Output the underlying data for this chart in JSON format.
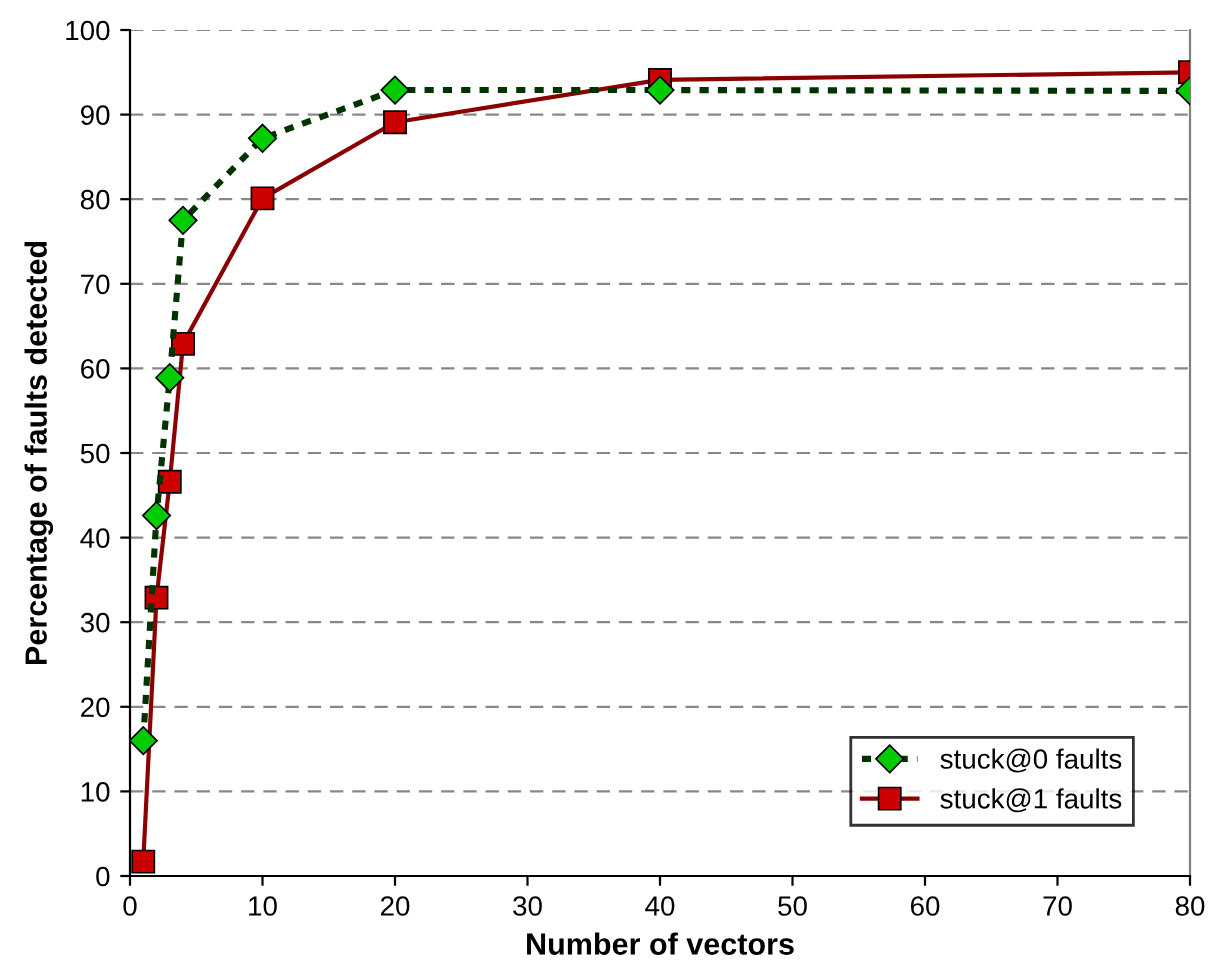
{
  "chart_data": {
    "type": "line",
    "xlabel": "Number of vectors",
    "ylabel": "Percentage of faults detected",
    "xlim": [
      0,
      80
    ],
    "xticks": [
      0,
      10,
      20,
      30,
      40,
      50,
      60,
      70,
      80
    ],
    "ylim": [
      0,
      100
    ],
    "yticks": [
      0,
      10,
      20,
      30,
      40,
      50,
      60,
      70,
      80,
      90,
      100
    ],
    "grid": "y",
    "legend": "bottom right",
    "series": [
      {
        "name": "stuck@0 faults",
        "color": "#00cc00",
        "marker": "diamond",
        "line_style": "dotted",
        "x": [
          1,
          2,
          3,
          4,
          10,
          20,
          40,
          80
        ],
        "values": [
          16,
          42.6,
          58.9,
          77.5,
          87.2,
          92.9,
          92.9,
          92.8
        ]
      },
      {
        "name": "stuck@1 faults",
        "color": "#cc0000",
        "marker": "square",
        "line_style": "solid",
        "x": [
          1,
          2,
          3,
          4,
          10,
          20,
          40,
          80
        ],
        "values": [
          1.7,
          32.9,
          46.6,
          62.9,
          80.1,
          89.1,
          94.1,
          95
        ]
      }
    ]
  }
}
